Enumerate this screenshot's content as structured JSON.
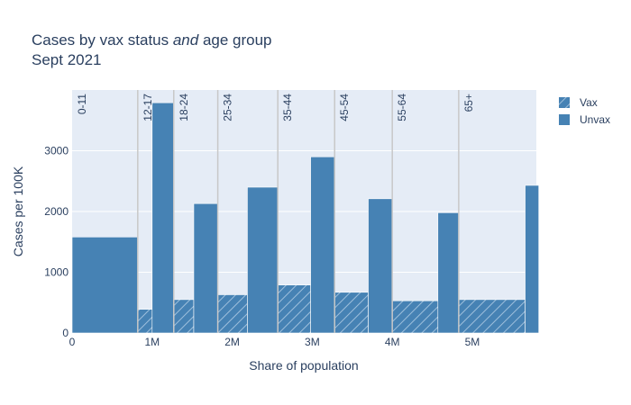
{
  "chart_data": {
    "type": "bar",
    "title_line1_a": "Cases by vax status ",
    "title_line1_em": "and",
    "title_line1_b": " age group",
    "title_line2": "Sept 2021",
    "xlabel": "Share of population",
    "ylabel": "Cases per 100K",
    "x_range": [
      0,
      5800000
    ],
    "ylim": [
      0,
      4000
    ],
    "x_ticks": [
      0,
      1000000,
      2000000,
      3000000,
      4000000,
      5000000
    ],
    "x_tick_labels": [
      "0",
      "1M",
      "2M",
      "3M",
      "4M",
      "5M"
    ],
    "y_ticks": [
      0,
      1000,
      2000,
      3000
    ],
    "y_tick_labels": [
      "0",
      "1000",
      "2000",
      "3000"
    ],
    "grid": true,
    "legend_position": "top-right",
    "legend": [
      {
        "label": "Vax",
        "pattern": "hatched"
      },
      {
        "label": "Unvax",
        "pattern": "solid"
      }
    ],
    "colors": {
      "bar": "#4682b4",
      "plot_bg": "#e5ecf6",
      "grid": "#ffffff",
      "divider": "#c8c8c8"
    },
    "groups": [
      {
        "label": "0-11",
        "start": 0,
        "vax_width": 0,
        "vax": 0,
        "unvax_width": 820000,
        "unvax": 1580
      },
      {
        "label": "12-17",
        "start": 820000,
        "vax_width": 180000,
        "vax": 390,
        "unvax_width": 270000,
        "unvax": 3790
      },
      {
        "label": "18-24",
        "start": 1270000,
        "vax_width": 250000,
        "vax": 550,
        "unvax_width": 300000,
        "unvax": 2130
      },
      {
        "label": "25-34",
        "start": 1820000,
        "vax_width": 370000,
        "vax": 630,
        "unvax_width": 380000,
        "unvax": 2400
      },
      {
        "label": "35-44",
        "start": 2570000,
        "vax_width": 410000,
        "vax": 790,
        "unvax_width": 300000,
        "unvax": 2900
      },
      {
        "label": "45-54",
        "start": 3280000,
        "vax_width": 420000,
        "vax": 670,
        "unvax_width": 300000,
        "unvax": 2210
      },
      {
        "label": "55-64",
        "start": 4000000,
        "vax_width": 570000,
        "vax": 530,
        "unvax_width": 260000,
        "unvax": 1980
      },
      {
        "label": "65+",
        "start": 4830000,
        "vax_width": 830000,
        "vax": 550,
        "unvax_width": 170000,
        "unvax": 2430
      }
    ]
  }
}
